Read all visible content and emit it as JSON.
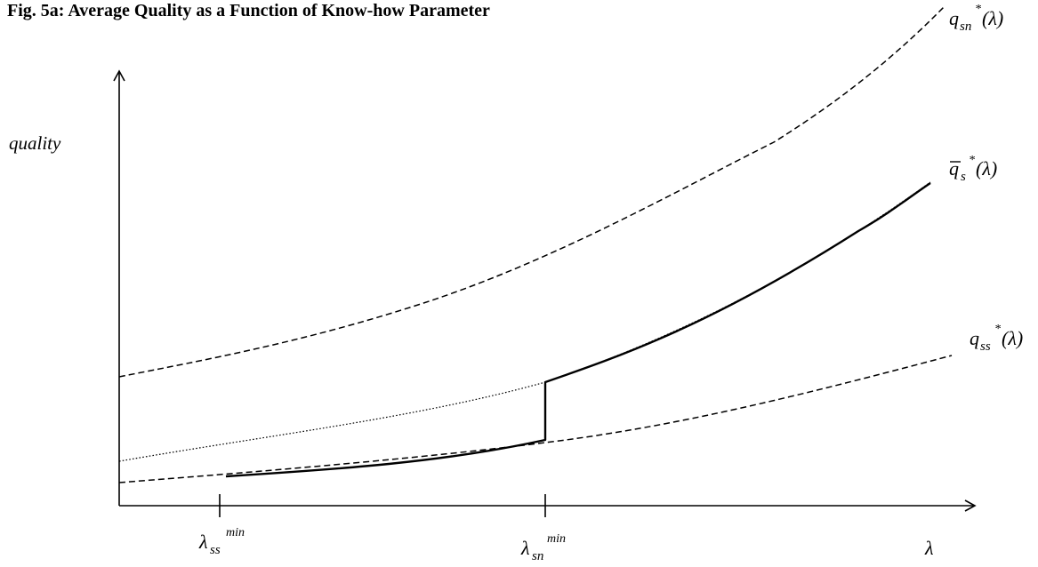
{
  "figure": {
    "title": "Fig. 5a: Average Quality as a Function of Know-how Parameter",
    "y_axis_label": "quality",
    "x_axis_symbol": "λ",
    "ticks": {
      "ss_min": {
        "base": "λ",
        "sub": "ss",
        "sup": "min"
      },
      "sn_min": {
        "base": "λ",
        "sub": "sn",
        "sup": "min"
      }
    },
    "curve_labels": {
      "q_sn": {
        "base": "q",
        "sub": "sn",
        "sup": "*",
        "arg": "(λ)"
      },
      "q_bar_s": {
        "base": "q",
        "sub": "s",
        "sup": "*",
        "arg": "(λ)"
      },
      "q_ss": {
        "base": "q",
        "sub": "ss",
        "sup": "*",
        "arg": "(λ)"
      }
    }
  }
}
